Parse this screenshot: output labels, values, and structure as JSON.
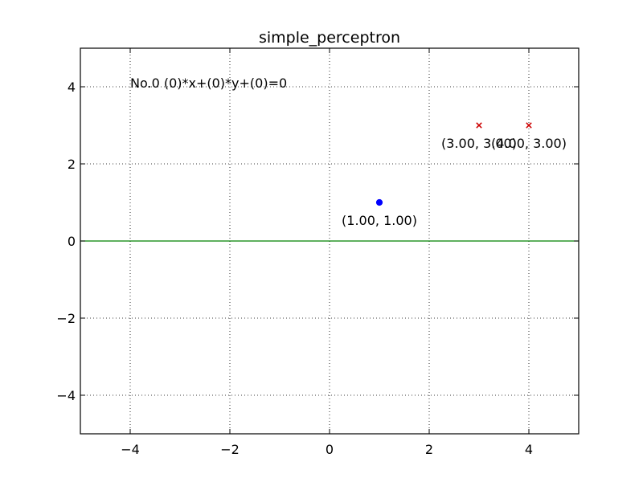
{
  "chart_data": {
    "type": "scatter",
    "title": "simple_perceptron",
    "xlabel": "",
    "ylabel": "",
    "xlim": [
      -5,
      5
    ],
    "ylim": [
      -5,
      5
    ],
    "xticks": [
      -4,
      -2,
      0,
      2,
      4
    ],
    "yticks": [
      -4,
      -2,
      0,
      2,
      4
    ],
    "xtick_labels": [
      "−4",
      "−2",
      "0",
      "2",
      "4"
    ],
    "ytick_labels": [
      "−4",
      "−2",
      "0",
      "2",
      "4"
    ],
    "grid": true,
    "series": [
      {
        "marker": "circle",
        "color": "#0000ff",
        "points": [
          {
            "x": 1,
            "y": 1,
            "label": "(1.00, 1.00)"
          }
        ]
      },
      {
        "marker": "x",
        "color": "#cc0000",
        "points": [
          {
            "x": 3,
            "y": 3,
            "label": "(3.00, 3.00)"
          },
          {
            "x": 4,
            "y": 3,
            "label": "(4.00, 3.00)"
          }
        ]
      }
    ],
    "lines": [
      {
        "color": "#008000",
        "x": [
          -5,
          5
        ],
        "y": [
          0,
          0
        ]
      }
    ],
    "annotation": {
      "text": "No.0  (0)*x+(0)*y+(0)=0",
      "x": -4,
      "y": 4
    }
  }
}
